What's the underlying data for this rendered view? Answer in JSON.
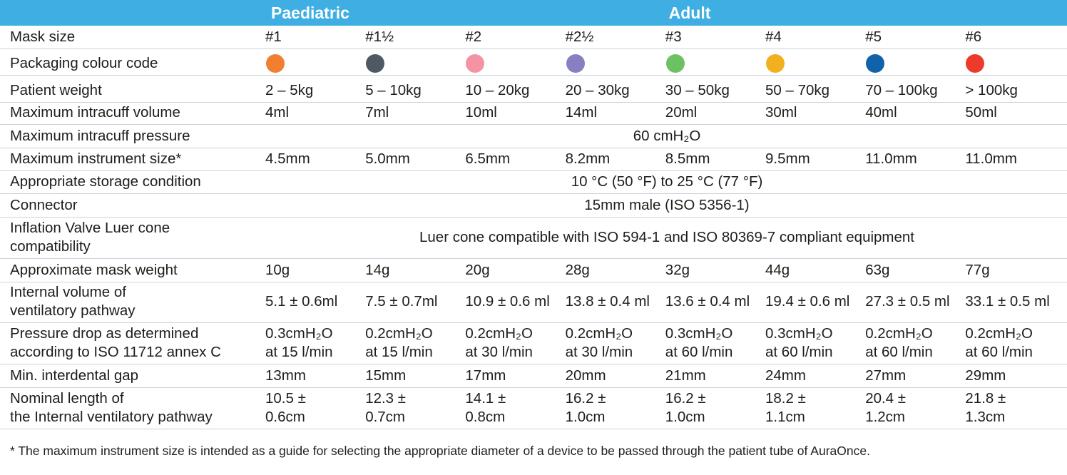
{
  "header": {
    "groups": [
      "Paediatric",
      "Adult"
    ]
  },
  "table": {
    "rows": [
      {
        "label": "Mask size",
        "cells": [
          "#1",
          "#1½",
          "#2",
          "#2½",
          "#3",
          "#4",
          "#5",
          "#6"
        ]
      },
      {
        "label": "Packaging colour code",
        "colors": [
          "#f08030",
          "#4d5a63",
          "#f493a4",
          "#8680c3",
          "#6cc262",
          "#f2b01f",
          "#1262aa",
          "#ee3a2b"
        ]
      },
      {
        "label": "Patient weight",
        "cells": [
          "2 – 5kg",
          "5 – 10kg",
          "10 – 20kg",
          "20 – 30kg",
          "30 – 50kg",
          "50 – 70kg",
          "70 – 100kg",
          "> 100kg"
        ]
      },
      {
        "label": "Maximum intracuff volume",
        "cells": [
          "4ml",
          "7ml",
          "10ml",
          "14ml",
          "20ml",
          "30ml",
          "40ml",
          "50ml"
        ]
      },
      {
        "label": "Maximum intracuff pressure",
        "span": "60 cmH₂O"
      },
      {
        "label": "Maximum instrument size*",
        "cells": [
          "4.5mm",
          "5.0mm",
          "6.5mm",
          "8.2mm",
          "8.5mm",
          "9.5mm",
          "11.0mm",
          "11.0mm"
        ]
      },
      {
        "label": "Appropriate storage condition",
        "span": "10 °C (50 °F) to 25 °C (77 °F)"
      },
      {
        "label": "Connector",
        "span": "15mm male (ISO 5356-1)"
      },
      {
        "label": [
          "Inflation Valve Luer cone",
          "compatibility"
        ],
        "span": "Luer cone compatible with ISO 594-1 and ISO 80369-7 compliant equipment"
      },
      {
        "label": "Approximate mask weight",
        "cells": [
          "10g",
          "14g",
          "20g",
          "28g",
          "32g",
          "44g",
          "63g",
          "77g"
        ]
      },
      {
        "label": [
          "Internal volume of",
          "ventilatory pathway"
        ],
        "cells": [
          "5.1 ± 0.6ml",
          "7.5 ± 0.7ml",
          "10.9 ± 0.6 ml",
          "13.8 ± 0.4 ml",
          "13.6 ± 0.4 ml",
          "19.4 ± 0.6 ml",
          "27.3 ± 0.5 ml",
          "33.1 ± 0.5 ml"
        ]
      },
      {
        "label": [
          "Pressure drop as determined",
          "according to ISO 11712 annex C"
        ],
        "cells": [
          [
            "0.3cmH₂O",
            "at 15 l/min"
          ],
          [
            "0.2cmH₂O",
            "at 15 l/min"
          ],
          [
            "0.2cmH₂O",
            "at 30 l/min"
          ],
          [
            "0.2cmH₂O",
            "at 30 l/min"
          ],
          [
            "0.3cmH₂O",
            "at 60 l/min"
          ],
          [
            "0.3cmH₂O",
            "at 60 l/min"
          ],
          [
            "0.2cmH₂O",
            "at 60 l/min"
          ],
          [
            "0.2cmH₂O",
            "at 60 l/min"
          ]
        ]
      },
      {
        "label": "Min. interdental gap",
        "cells": [
          "13mm",
          "15mm",
          "17mm",
          "20mm",
          "21mm",
          "24mm",
          "27mm",
          "29mm"
        ]
      },
      {
        "label": [
          "Nominal length of",
          "the Internal ventilatory pathway"
        ],
        "cells": [
          [
            "10.5 ±",
            "0.6cm"
          ],
          [
            "12.3 ±",
            "0.7cm"
          ],
          [
            "14.1 ±",
            "0.8cm"
          ],
          [
            "16.2 ±",
            "1.0cm"
          ],
          [
            "16.2 ±",
            "1.0cm"
          ],
          [
            "18.2 ±",
            "1.1cm"
          ],
          [
            "20.4 ±",
            "1.2cm"
          ],
          [
            "21.8 ±",
            "1.3cm"
          ]
        ]
      }
    ]
  },
  "footnote": "* The maximum instrument size is intended as a guide for selecting the appropriate diameter of a device to be passed through the patient tube of AuraOnce."
}
